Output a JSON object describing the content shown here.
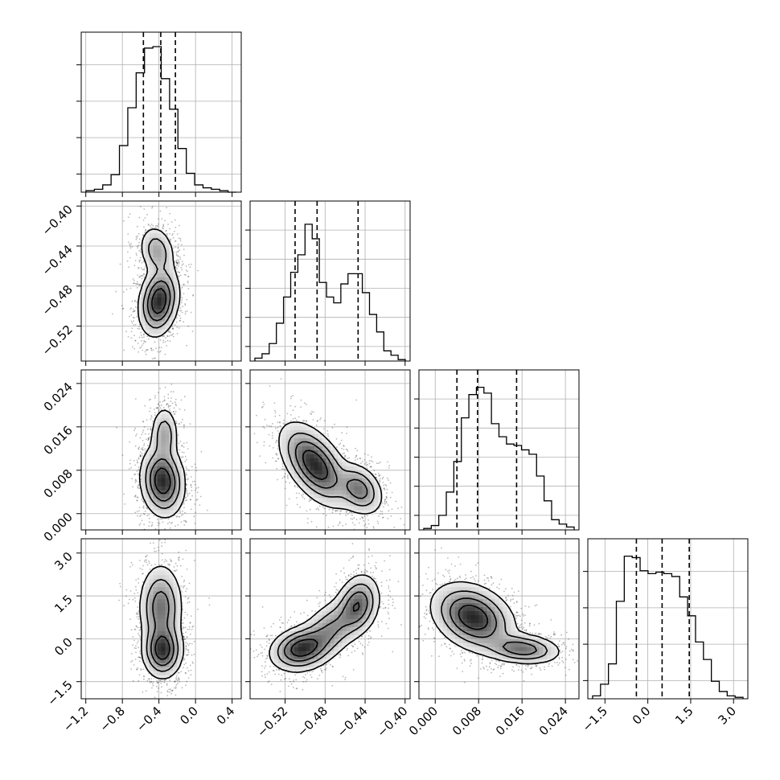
{
  "chart_data": {
    "type": "corner",
    "parameters": [
      {
        "axis_range": [
          -1.25,
          0.5
        ],
        "ticks": [
          -1.2,
          -0.8,
          -0.4,
          0.0,
          0.4
        ],
        "tick_labels": [
          "−1.2",
          "−0.8",
          "−0.4",
          "0.0",
          "0.4"
        ],
        "quantiles": [
          -0.57,
          -0.38,
          -0.22
        ]
      },
      {
        "axis_range": [
          -0.555,
          -0.395
        ],
        "ticks": [
          -0.52,
          -0.48,
          -0.44,
          -0.4
        ],
        "tick_labels": [
          "−0.52",
          "−0.48",
          "−0.44",
          "−0.40"
        ],
        "quantiles": [
          -0.51,
          -0.488,
          -0.447
        ]
      },
      {
        "axis_range": [
          -0.003,
          0.0265
        ],
        "ticks": [
          0.0,
          0.008,
          0.016,
          0.024
        ],
        "tick_labels": [
          "0.000",
          "0.008",
          "0.016",
          "0.024"
        ],
        "quantiles": [
          0.004,
          0.0078,
          0.015
        ]
      },
      {
        "axis_range": [
          -2.1,
          3.5
        ],
        "ticks": [
          -1.5,
          0.0,
          1.5,
          3.0
        ],
        "tick_labels": [
          "−1.5",
          "0.0",
          "1.5",
          "3.0"
        ],
        "quantiles": [
          -0.4,
          0.5,
          1.45
        ]
      }
    ],
    "histograms": [
      [
        0.01,
        0.02,
        0.05,
        0.12,
        0.32,
        0.58,
        0.82,
        0.99,
        1.0,
        0.78,
        0.57,
        0.3,
        0.13,
        0.05,
        0.03,
        0.02,
        0.01,
        0.0
      ],
      [
        0.02,
        0.05,
        0.12,
        0.26,
        0.44,
        0.61,
        0.73,
        0.94,
        0.84,
        0.54,
        0.44,
        0.4,
        0.53,
        0.6,
        0.6,
        0.47,
        0.32,
        0.2,
        0.07,
        0.04,
        0.01
      ],
      [
        0.01,
        0.03,
        0.1,
        0.26,
        0.47,
        0.77,
        0.93,
        0.98,
        0.94,
        0.73,
        0.64,
        0.59,
        0.58,
        0.55,
        0.52,
        0.37,
        0.2,
        0.07,
        0.04,
        0.02
      ],
      [
        0.02,
        0.1,
        0.24,
        0.67,
        0.98,
        0.97,
        0.88,
        0.86,
        0.87,
        0.86,
        0.84,
        0.7,
        0.57,
        0.39,
        0.27,
        0.12,
        0.05,
        0.02,
        0.01
      ]
    ],
    "histogram_ticks": [
      4,
      5,
      5,
      4
    ],
    "pair_blobs": [
      {
        "row": 1,
        "col": 0,
        "blobs": [
          {
            "x": -0.4,
            "y": -0.495,
            "sx": 0.1,
            "sy": 0.016,
            "rho": 0.2,
            "w": 1.2
          },
          {
            "x": -0.42,
            "y": -0.445,
            "sx": 0.09,
            "sy": 0.012,
            "rho": -0.2,
            "w": 0.5
          }
        ]
      },
      {
        "row": 2,
        "col": 0,
        "blobs": [
          {
            "x": -0.36,
            "y": 0.006,
            "sx": 0.11,
            "sy": 0.003,
            "rho": -0.1,
            "w": 1.2
          },
          {
            "x": -0.34,
            "y": 0.0145,
            "sx": 0.07,
            "sy": 0.0025,
            "rho": 0.0,
            "w": 0.5
          }
        ]
      },
      {
        "row": 3,
        "col": 0,
        "blobs": [
          {
            "x": -0.36,
            "y": -0.4,
            "sx": 0.1,
            "sy": 0.45,
            "rho": 0.0,
            "w": 1.3
          },
          {
            "x": -0.38,
            "y": 1.1,
            "sx": 0.11,
            "sy": 0.7,
            "rho": 0.0,
            "w": 0.9
          }
        ]
      },
      {
        "row": 2,
        "col": 1,
        "blobs": [
          {
            "x": -0.49,
            "y": 0.009,
            "sx": 0.016,
            "sy": 0.0035,
            "rho": -0.55,
            "w": 1.2
          },
          {
            "x": -0.446,
            "y": 0.0045,
            "sx": 0.011,
            "sy": 0.0022,
            "rho": -0.3,
            "w": 0.75
          }
        ]
      },
      {
        "row": 3,
        "col": 1,
        "blobs": [
          {
            "x": -0.505,
            "y": -0.35,
            "sx": 0.014,
            "sy": 0.35,
            "rho": 0.2,
            "w": 1.0
          },
          {
            "x": -0.475,
            "y": 0.3,
            "sx": 0.018,
            "sy": 0.6,
            "rho": 0.6,
            "w": 0.6
          },
          {
            "x": -0.447,
            "y": 1.2,
            "sx": 0.01,
            "sy": 0.5,
            "rho": 0.2,
            "w": 0.75
          }
        ]
      },
      {
        "row": 3,
        "col": 2,
        "blobs": [
          {
            "x": 0.007,
            "y": 0.75,
            "sx": 0.0035,
            "sy": 0.55,
            "rho": -0.3,
            "w": 1.2
          },
          {
            "x": 0.016,
            "y": -0.35,
            "sx": 0.0033,
            "sy": 0.25,
            "rho": -0.2,
            "w": 0.8
          }
        ]
      }
    ],
    "contour_levels": [
      0.08,
      0.25,
      0.48,
      0.75
    ],
    "grid": true,
    "title": "",
    "axis_labels": []
  }
}
